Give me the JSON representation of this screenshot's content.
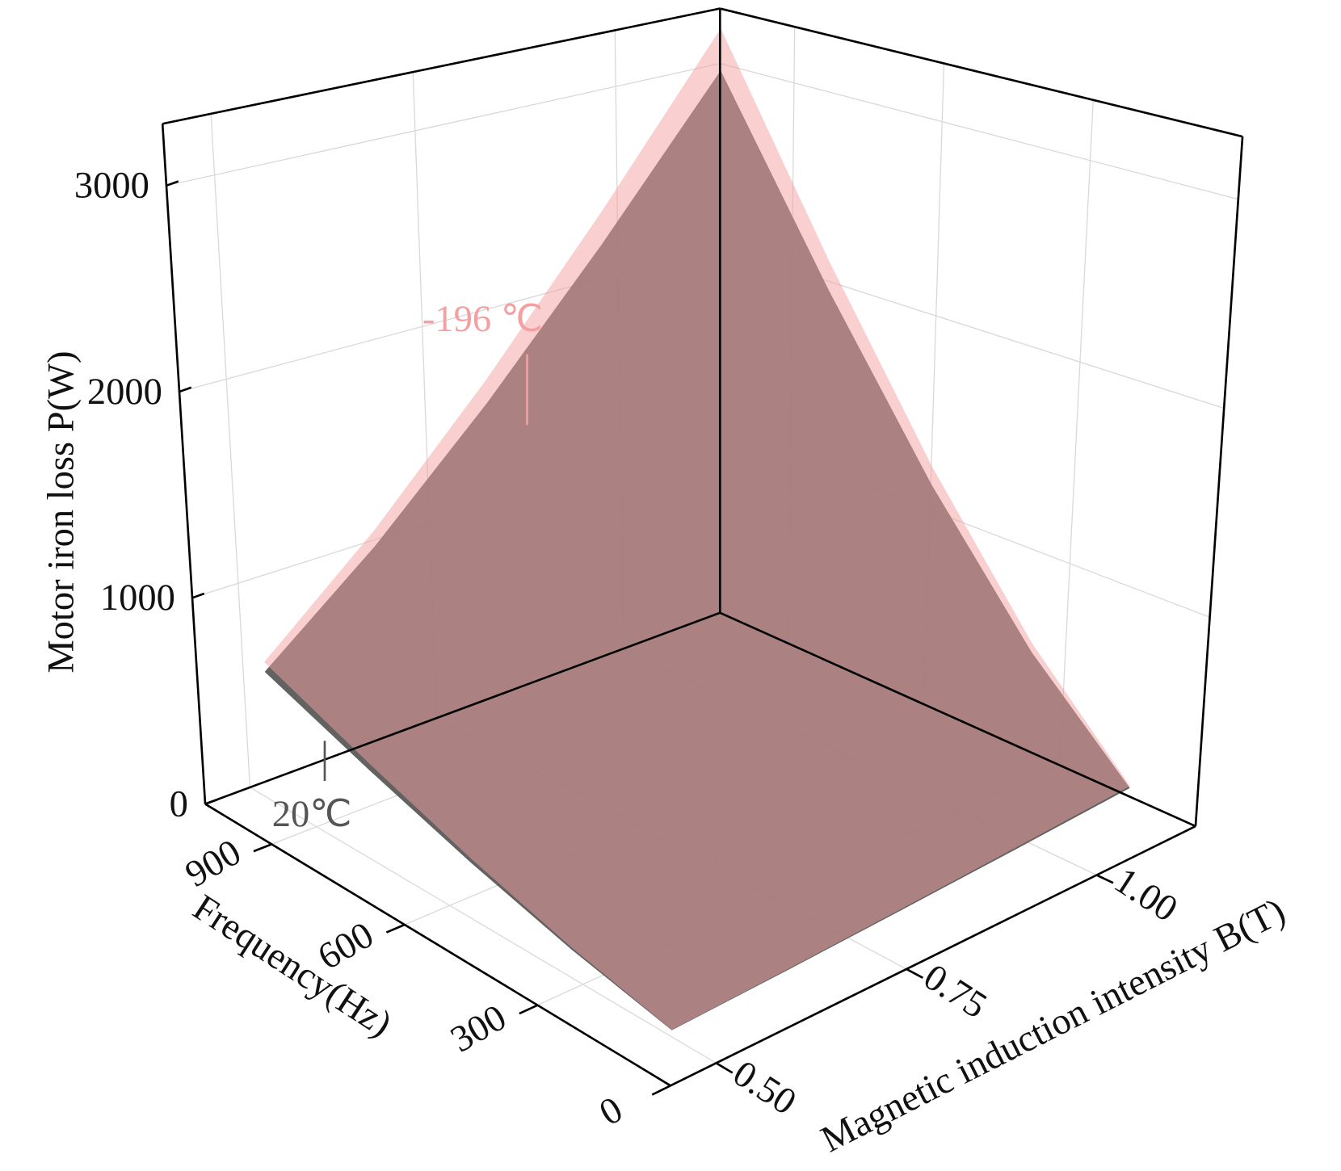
{
  "chart_data": {
    "type": "surface",
    "x_label": "Frequency(Hz)",
    "y_label": "Magnetic induction intensity B(T)",
    "z_label": "Motor iron loss P(W)",
    "x": [
      100,
      325,
      550,
      775,
      1000
    ],
    "y": [
      0.5,
      0.65,
      0.8,
      0.95,
      1.1
    ],
    "series": [
      {
        "name": "20℃",
        "color": "#555555",
        "values": [
          [
            29,
            48,
            73,
            103,
            139
          ],
          [
            121,
            204,
            309,
            436,
            584
          ],
          [
            250,
            423,
            642,
            905,
            1213
          ],
          [
            418,
            707,
            1071,
            1510,
            2025
          ],
          [
            624,
            1055,
            1598,
            2252,
            3021
          ]
        ]
      },
      {
        "name": "-196 ℃",
        "color": "#f4a0a0",
        "values": [
          [
            31,
            52,
            79,
            111,
            149
          ],
          [
            130,
            219,
            332,
            469,
            628
          ],
          [
            269,
            455,
            690,
            973,
            1304
          ],
          [
            450,
            760,
            1152,
            1624,
            2177
          ],
          [
            671,
            1134,
            1718,
            2422,
            3248
          ]
        ]
      }
    ],
    "xlim": [
      0,
      1050
    ],
    "xticks": [
      0,
      300,
      600,
      900
    ],
    "ylim": [
      0.44,
      1.13
    ],
    "yticks": [
      {
        "value": 0.5,
        "label": "0.50"
      },
      {
        "value": 0.75,
        "label": "0.75"
      },
      {
        "value": 1,
        "label": "1.00"
      }
    ],
    "zlim": [
      0,
      3300
    ],
    "zticks": [
      0,
      1000,
      2000,
      3000
    ],
    "grid": true
  }
}
